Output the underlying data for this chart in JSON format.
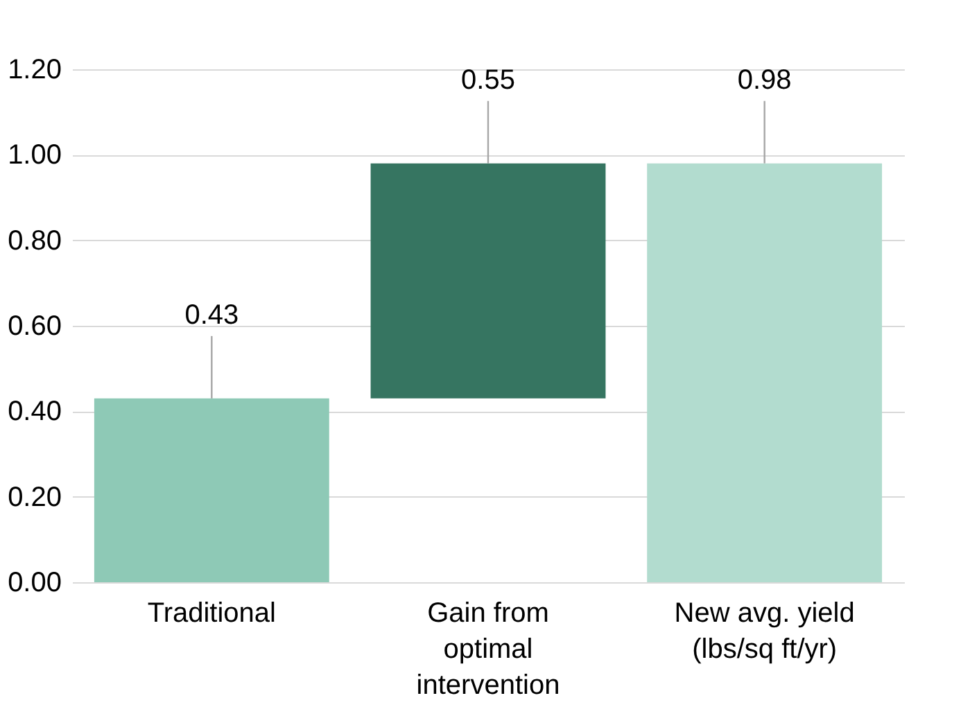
{
  "chart_data": {
    "type": "bar",
    "categories": [
      "Traditional",
      "Gain from optimal intervention",
      "New avg. yield (lbs/sq ft/yr)"
    ],
    "values": [
      0.43,
      0.55,
      0.98
    ],
    "base": [
      0,
      0.43,
      0
    ],
    "colors": [
      "#8ec9b6",
      "#367561",
      "#b2dccf"
    ],
    "ylim": [
      0,
      1.2
    ],
    "yticks": [
      {
        "value": 0,
        "label": "0.00"
      },
      {
        "value": 0.2,
        "label": "0.20"
      },
      {
        "value": 0.4,
        "label": "0.40"
      },
      {
        "value": 0.6,
        "label": "0.60"
      },
      {
        "value": 0.8,
        "label": "0.80"
      },
      {
        "value": 1.0,
        "label": "1.00"
      },
      {
        "value": 1.2,
        "label": "1.20"
      }
    ],
    "grid": "y",
    "data_labels": true
  }
}
